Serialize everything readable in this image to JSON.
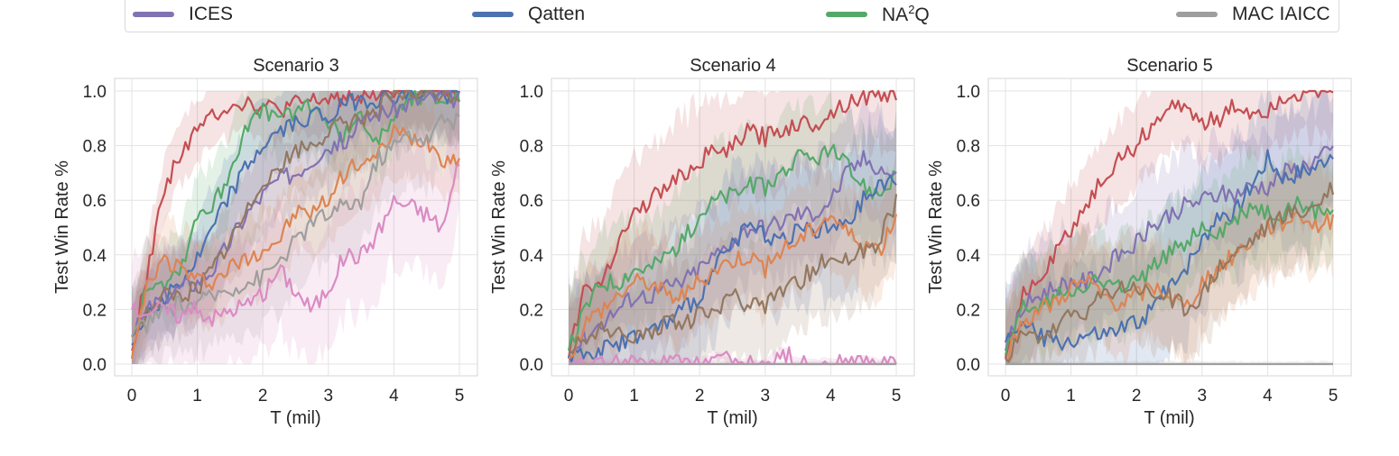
{
  "legend": {
    "items": [
      {
        "label": "ICES",
        "color": "#8172b3"
      },
      {
        "label": "Qatten",
        "color": "#4c72b0"
      },
      {
        "label": "NA",
        "sup": "2",
        "suffix": "Q",
        "color": "#55a868"
      },
      {
        "label": "MAC IAICC",
        "color": "#9e9e9e"
      }
    ]
  },
  "colors": {
    "red": "#c44e52",
    "purple": "#8172b3",
    "blue": "#4c72b0",
    "green": "#55a868",
    "orange": "#dd8452",
    "brown": "#937860",
    "gray": "#9e9e9e",
    "pink": "#da8bc3"
  },
  "chart_data": [
    {
      "type": "line",
      "title": "Scenario 3",
      "xlabel": "T (mil)",
      "ylabel": "Test Win Rate %",
      "xlim": [
        0,
        5
      ],
      "ylim": [
        0,
        1
      ],
      "xticks": [
        "0",
        "1",
        "2",
        "3",
        "4",
        "5"
      ],
      "yticks": [
        "0.0",
        "0.2",
        "0.4",
        "0.6",
        "0.8",
        "1.0"
      ],
      "grid": true,
      "x": [
        0,
        0.25,
        0.5,
        0.75,
        1,
        1.25,
        1.5,
        1.75,
        2,
        2.25,
        2.5,
        2.75,
        3,
        3.25,
        3.5,
        3.75,
        4,
        4.25,
        4.5,
        4.75,
        5
      ],
      "series": [
        {
          "color_key": "red",
          "band": 0.12,
          "values": [
            0.05,
            0.35,
            0.65,
            0.78,
            0.85,
            0.92,
            0.95,
            0.96,
            0.94,
            0.93,
            0.95,
            0.96,
            0.97,
            0.98,
            0.99,
            1.0,
            1.0,
            1.0,
            1.0,
            1.0,
            1.0
          ]
        },
        {
          "color_key": "green",
          "band": 0.15,
          "values": [
            0.1,
            0.3,
            0.3,
            0.35,
            0.55,
            0.58,
            0.7,
            0.88,
            0.92,
            0.9,
            0.93,
            0.95,
            0.88,
            0.84,
            0.9,
            0.82,
            0.92,
            0.98,
            0.99,
            0.98,
            0.98
          ]
        },
        {
          "color_key": "blue",
          "band": 0.15,
          "values": [
            0.07,
            0.2,
            0.25,
            0.3,
            0.38,
            0.5,
            0.62,
            0.72,
            0.8,
            0.85,
            0.88,
            0.92,
            0.9,
            0.95,
            0.97,
            0.97,
            0.98,
            0.99,
            0.99,
            0.99,
            0.99
          ]
        },
        {
          "color_key": "purple",
          "band": 0.15,
          "values": [
            0.1,
            0.2,
            0.25,
            0.28,
            0.3,
            0.35,
            0.45,
            0.55,
            0.62,
            0.68,
            0.7,
            0.75,
            0.8,
            0.82,
            0.88,
            0.92,
            0.93,
            0.96,
            0.97,
            0.98,
            0.97
          ]
        },
        {
          "color_key": "brown",
          "band": 0.15,
          "values": [
            0.1,
            0.2,
            0.25,
            0.25,
            0.28,
            0.35,
            0.45,
            0.55,
            0.68,
            0.72,
            0.78,
            0.8,
            0.85,
            0.88,
            0.9,
            0.94,
            0.98,
            0.99,
            0.99,
            0.99,
            0.98
          ]
        },
        {
          "color_key": "orange",
          "band": 0.15,
          "values": [
            0.02,
            0.3,
            0.38,
            0.35,
            0.3,
            0.3,
            0.35,
            0.38,
            0.42,
            0.45,
            0.55,
            0.55,
            0.6,
            0.7,
            0.75,
            0.75,
            0.85,
            0.82,
            0.82,
            0.75,
            0.75
          ]
        },
        {
          "color_key": "gray",
          "band": 0.18,
          "values": [
            0.1,
            0.15,
            0.2,
            0.22,
            0.22,
            0.25,
            0.28,
            0.3,
            0.32,
            0.38,
            0.45,
            0.52,
            0.55,
            0.58,
            0.6,
            0.75,
            0.8,
            0.85,
            0.82,
            0.9,
            0.88
          ]
        },
        {
          "color_key": "pink",
          "band": 0.22,
          "values": [
            0.2,
            0.2,
            0.2,
            0.18,
            0.2,
            0.17,
            0.2,
            0.22,
            0.25,
            0.35,
            0.27,
            0.2,
            0.28,
            0.4,
            0.4,
            0.48,
            0.6,
            0.58,
            0.55,
            0.5,
            0.75
          ]
        }
      ]
    },
    {
      "type": "line",
      "title": "Scenario 4",
      "xlabel": "T (mil)",
      "ylabel": "Test Win Rate %",
      "xlim": [
        0,
        5
      ],
      "ylim": [
        0,
        1
      ],
      "xticks": [
        "0",
        "1",
        "2",
        "3",
        "4",
        "5"
      ],
      "yticks": [
        "0.0",
        "0.2",
        "0.4",
        "0.6",
        "0.8",
        "1.0"
      ],
      "grid": true,
      "x": [
        0,
        0.25,
        0.5,
        0.75,
        1,
        1.25,
        1.5,
        1.75,
        2,
        2.25,
        2.5,
        2.75,
        3,
        3.25,
        3.5,
        3.75,
        4,
        4.25,
        4.5,
        4.75,
        5
      ],
      "series": [
        {
          "color_key": "red",
          "band": 0.2,
          "values": [
            0.02,
            0.3,
            0.3,
            0.45,
            0.55,
            0.6,
            0.65,
            0.7,
            0.75,
            0.78,
            0.8,
            0.85,
            0.83,
            0.86,
            0.88,
            0.88,
            0.92,
            0.96,
            0.98,
            0.99,
            0.99
          ]
        },
        {
          "color_key": "green",
          "band": 0.2,
          "values": [
            0.05,
            0.2,
            0.3,
            0.3,
            0.35,
            0.35,
            0.4,
            0.45,
            0.55,
            0.6,
            0.62,
            0.65,
            0.65,
            0.7,
            0.75,
            0.75,
            0.78,
            0.72,
            0.65,
            0.62,
            0.7
          ]
        },
        {
          "color_key": "purple",
          "band": 0.2,
          "values": [
            0.03,
            0.1,
            0.15,
            0.2,
            0.25,
            0.25,
            0.28,
            0.3,
            0.35,
            0.4,
            0.45,
            0.5,
            0.5,
            0.52,
            0.55,
            0.55,
            0.6,
            0.7,
            0.75,
            0.72,
            0.68
          ]
        },
        {
          "color_key": "blue",
          "band": 0.25,
          "values": [
            0.03,
            0.05,
            0.05,
            0.08,
            0.1,
            0.12,
            0.15,
            0.2,
            0.25,
            0.35,
            0.45,
            0.5,
            0.48,
            0.45,
            0.5,
            0.48,
            0.5,
            0.5,
            0.6,
            0.65,
            0.68
          ]
        },
        {
          "color_key": "orange",
          "band": 0.18,
          "values": [
            0.02,
            0.15,
            0.2,
            0.25,
            0.3,
            0.3,
            0.25,
            0.25,
            0.3,
            0.35,
            0.38,
            0.4,
            0.35,
            0.42,
            0.45,
            0.5,
            0.55,
            0.48,
            0.45,
            0.42,
            0.55
          ]
        },
        {
          "color_key": "brown",
          "band": 0.2,
          "values": [
            0.04,
            0.1,
            0.12,
            0.1,
            0.1,
            0.12,
            0.15,
            0.15,
            0.18,
            0.2,
            0.25,
            0.2,
            0.22,
            0.28,
            0.3,
            0.35,
            0.4,
            0.38,
            0.42,
            0.45,
            0.6
          ]
        },
        {
          "color_key": "pink",
          "band": 0.02,
          "values": [
            0,
            0,
            0,
            0,
            0,
            0,
            0,
            0,
            0,
            0.03,
            0,
            0,
            0,
            0.05,
            0,
            0,
            0,
            0,
            0.01,
            0,
            0
          ]
        },
        {
          "color_key": "gray",
          "band": 0.01,
          "values": [
            0,
            0,
            0,
            0,
            0,
            0,
            0,
            0,
            0,
            0,
            0,
            0,
            0,
            0,
            0,
            0,
            0,
            0,
            0,
            0,
            0
          ]
        }
      ]
    },
    {
      "type": "line",
      "title": "Scenario 5",
      "xlabel": "T (mil)",
      "ylabel": "Test Win Rate %",
      "xlim": [
        0,
        5
      ],
      "ylim": [
        0,
        1
      ],
      "xticks": [
        "0",
        "1",
        "2",
        "3",
        "4",
        "5"
      ],
      "yticks": [
        "0.0",
        "0.2",
        "0.4",
        "0.6",
        "0.8",
        "1.0"
      ],
      "grid": true,
      "x": [
        0,
        0.25,
        0.5,
        0.75,
        1,
        1.25,
        1.5,
        1.75,
        2,
        2.25,
        2.5,
        2.75,
        3,
        3.25,
        3.5,
        3.75,
        4,
        4.25,
        4.5,
        4.75,
        5
      ],
      "series": [
        {
          "color_key": "red",
          "band": 0.15,
          "values": [
            0.02,
            0.25,
            0.3,
            0.4,
            0.5,
            0.58,
            0.68,
            0.75,
            0.8,
            0.88,
            0.93,
            0.96,
            0.88,
            0.9,
            0.94,
            0.92,
            0.93,
            0.98,
            0.99,
            0.99,
            1.0
          ]
        },
        {
          "color_key": "purple",
          "band": 0.2,
          "values": [
            0.05,
            0.2,
            0.25,
            0.28,
            0.3,
            0.3,
            0.35,
            0.4,
            0.45,
            0.5,
            0.55,
            0.58,
            0.6,
            0.62,
            0.62,
            0.65,
            0.65,
            0.7,
            0.72,
            0.75,
            0.78
          ]
        },
        {
          "color_key": "blue",
          "band": 0.25,
          "values": [
            0.08,
            0.15,
            0.1,
            0.08,
            0.08,
            0.1,
            0.1,
            0.12,
            0.15,
            0.2,
            0.3,
            0.35,
            0.45,
            0.55,
            0.55,
            0.65,
            0.75,
            0.68,
            0.7,
            0.72,
            0.78
          ]
        },
        {
          "color_key": "green",
          "band": 0.18,
          "values": [
            0.03,
            0.2,
            0.2,
            0.25,
            0.28,
            0.3,
            0.3,
            0.28,
            0.3,
            0.35,
            0.4,
            0.45,
            0.5,
            0.48,
            0.52,
            0.58,
            0.55,
            0.55,
            0.6,
            0.55,
            0.57
          ]
        },
        {
          "color_key": "orange",
          "band": 0.18,
          "values": [
            0.02,
            0.15,
            0.2,
            0.22,
            0.28,
            0.3,
            0.25,
            0.22,
            0.25,
            0.28,
            0.25,
            0.2,
            0.3,
            0.35,
            0.4,
            0.45,
            0.5,
            0.52,
            0.55,
            0.5,
            0.53
          ]
        },
        {
          "color_key": "brown",
          "band": 0.18,
          "values": [
            0.02,
            0.1,
            0.1,
            0.12,
            0.18,
            0.2,
            0.25,
            0.28,
            0.28,
            0.25,
            0.25,
            0.2,
            0.25,
            0.35,
            0.4,
            0.45,
            0.5,
            0.55,
            0.55,
            0.58,
            0.65
          ]
        },
        {
          "color_key": "gray",
          "band": 0.01,
          "values": [
            0,
            0,
            0,
            0,
            0,
            0,
            0,
            0,
            0,
            0,
            0,
            0,
            0,
            0,
            0,
            0,
            0,
            0,
            0,
            0,
            0
          ]
        }
      ]
    }
  ]
}
